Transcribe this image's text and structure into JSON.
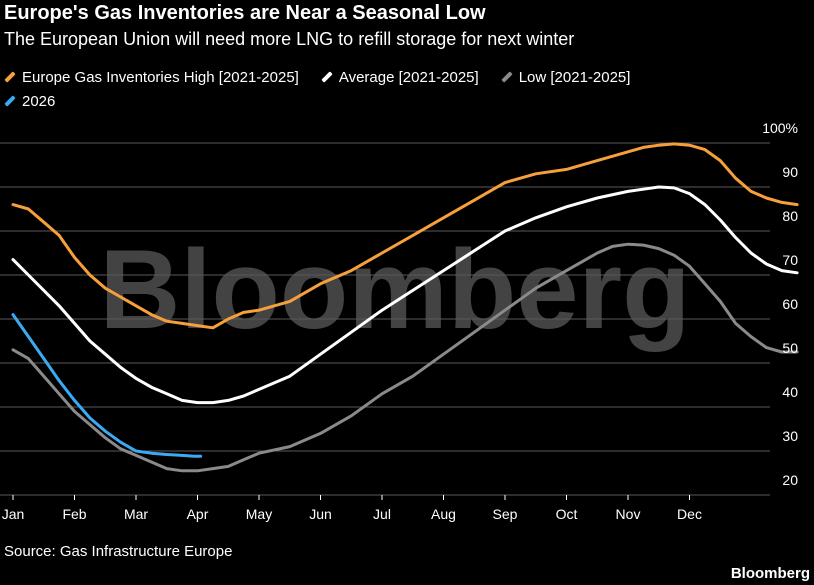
{
  "header": {
    "title": "Europe's Gas Inventories are Near a Seasonal Low",
    "subtitle": "The European Union will need more LNG to refill storage for next winter"
  },
  "footer": {
    "source": "Source: Gas Infrastructure Europe",
    "brand": "Bloomberg"
  },
  "watermark": "Bloomberg",
  "chart_data": {
    "type": "line",
    "title": "Europe's Gas Inventories are Near a Seasonal Low",
    "subtitle": "The European Union will need more LNG to refill storage for next winter",
    "xlabel": "",
    "ylabel": "",
    "x_ticks": [
      "Jan",
      "Feb",
      "Mar",
      "Apr",
      "May",
      "Jun",
      "Jul",
      "Aug",
      "Sep",
      "Oct",
      "Nov",
      "Dec"
    ],
    "y_ticks": [
      "100%",
      "90",
      "80",
      "70",
      "60",
      "50",
      "40",
      "30",
      "20"
    ],
    "ylim": [
      20,
      100
    ],
    "xlim": [
      0,
      12.7
    ],
    "x_unit": "month of year (0 = Jan 1)",
    "grid": true,
    "legend_position": "top-left",
    "series": [
      {
        "name": "Europe Gas Inventories High [2021-2025]",
        "color": "#f6a03b",
        "x": [
          0,
          0.25,
          0.5,
          0.75,
          1.0,
          1.25,
          1.5,
          1.75,
          2.0,
          2.25,
          2.5,
          2.75,
          3.0,
          3.25,
          3.5,
          3.75,
          4.0,
          4.5,
          5.0,
          5.5,
          6.0,
          6.5,
          7.0,
          7.5,
          8.0,
          8.5,
          9.0,
          9.5,
          10.0,
          10.25,
          10.5,
          10.75,
          11.0,
          11.25,
          11.5,
          11.75,
          12.0,
          12.25,
          12.5,
          12.75
        ],
        "values": [
          86,
          85,
          82,
          79,
          74,
          70,
          67,
          65,
          63,
          61,
          59.5,
          59,
          58.5,
          58,
          60,
          61.5,
          62,
          64,
          68,
          71,
          75,
          79,
          83,
          87,
          91,
          93,
          94,
          96,
          98,
          99,
          99.5,
          99.8,
          99.5,
          98.5,
          96,
          92,
          89,
          87.5,
          86.5,
          86
        ]
      },
      {
        "name": "Average [2021-2025]",
        "color": "#ffffff",
        "x": [
          0,
          0.25,
          0.5,
          0.75,
          1.0,
          1.25,
          1.5,
          1.75,
          2.0,
          2.25,
          2.5,
          2.75,
          3.0,
          3.25,
          3.5,
          3.75,
          4.0,
          4.5,
          5.0,
          5.5,
          6.0,
          6.5,
          7.0,
          7.5,
          8.0,
          8.5,
          9.0,
          9.5,
          10.0,
          10.25,
          10.5,
          10.75,
          11.0,
          11.25,
          11.5,
          11.75,
          12.0,
          12.25,
          12.5,
          12.75
        ],
        "values": [
          73.5,
          70,
          66.5,
          63,
          59,
          55,
          52,
          49,
          46.5,
          44.5,
          43,
          41.5,
          41,
          41,
          41.5,
          42.5,
          44,
          47,
          52,
          57,
          62,
          66.5,
          71,
          75.5,
          80,
          83,
          85.5,
          87.5,
          89,
          89.5,
          90,
          89.8,
          88.5,
          86,
          82.5,
          78.5,
          75,
          72.5,
          71,
          70.5
        ]
      },
      {
        "name": "Low [2021-2025]",
        "color": "#8a8a8a",
        "x": [
          0,
          0.25,
          0.5,
          0.75,
          1.0,
          1.25,
          1.5,
          1.75,
          2.0,
          2.25,
          2.5,
          2.75,
          3.0,
          3.25,
          3.5,
          3.75,
          4.0,
          4.5,
          5.0,
          5.5,
          6.0,
          6.5,
          7.0,
          7.5,
          8.0,
          8.5,
          9.0,
          9.25,
          9.5,
          9.75,
          10.0,
          10.25,
          10.5,
          10.75,
          11.0,
          11.25,
          11.5,
          11.75,
          12.0,
          12.25,
          12.5,
          12.75
        ],
        "values": [
          53,
          51,
          47,
          43,
          39,
          36,
          33,
          30.5,
          29,
          27.5,
          26,
          25.5,
          25.5,
          26,
          26.5,
          28,
          29.5,
          31,
          34,
          38,
          43,
          47,
          52,
          57,
          62,
          67,
          71,
          73,
          75,
          76.5,
          77,
          76.8,
          76,
          74.5,
          72,
          68,
          64,
          59,
          56,
          53.5,
          52.5,
          52.5
        ]
      },
      {
        "name": "2026",
        "color": "#3aaaf2",
        "x": [
          0,
          0.25,
          0.5,
          0.75,
          1.0,
          1.25,
          1.5,
          1.75,
          2.0,
          2.25,
          2.5,
          2.75,
          2.95,
          3.05
        ],
        "values": [
          61,
          56,
          51,
          46,
          41.5,
          37.5,
          34.5,
          32,
          30,
          29.5,
          29.2,
          29,
          28.8,
          28.8
        ]
      }
    ]
  }
}
